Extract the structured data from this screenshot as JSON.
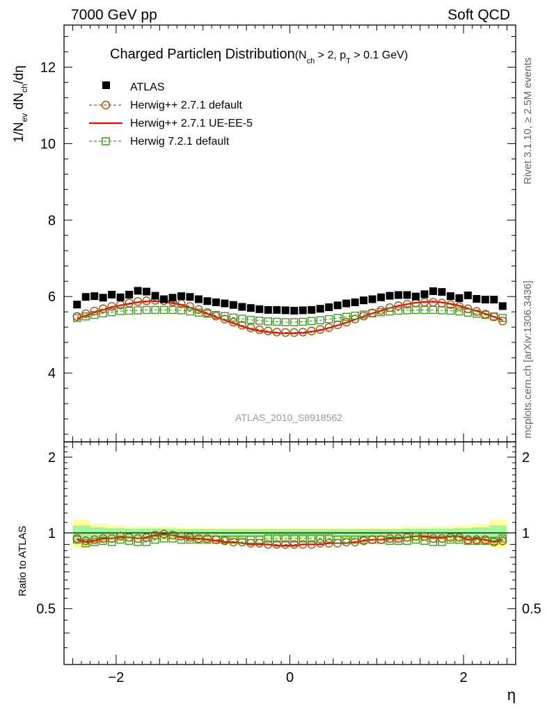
{
  "header": {
    "left": "7000 GeV pp",
    "right": "Soft QCD"
  },
  "side": {
    "top": "Rivet 3.1.10, ≥ 2.5M events",
    "bottom": "mcplots.cern.ch [arXiv:1306.3436]"
  },
  "watermark": "ATLAS_2010_S8918562",
  "colors": {
    "atlas": "#000000",
    "herwig_default": "#a0520f",
    "herwig_ueee5": "#ff0000",
    "herwig7": "#3d9a1e",
    "band_inner": "#9ff5a0",
    "band_outer": "#ffff99"
  },
  "chart_data": [
    {
      "type": "scatter",
      "title_main": "Charged Particle",
      "title_eta": "η",
      "title_rest": " Distribution",
      "title_cond": "(N",
      "title_cond_sub": "ch",
      "title_cond_mid": " > 2, p",
      "title_cond_sub2": "T",
      "title_cond_end": " > 0.1 GeV)",
      "ylabel": "1/N_ev dN_ch/dη",
      "xlim": [
        -2.6,
        2.6
      ],
      "ylim": [
        2.2,
        13.1
      ],
      "ytick_labels": [
        "4",
        "6",
        "8",
        "10",
        "12"
      ],
      "legend": [
        {
          "label": "ATLAS",
          "marker": "square-filled"
        },
        {
          "label": "Herwig++ 2.7.1 default",
          "marker": "circle-dashed"
        },
        {
          "label": "Herwig++ 2.7.1 UE-EE-5",
          "marker": "line"
        },
        {
          "label": "Herwig 7.2.1 default",
          "marker": "square-dashed"
        }
      ],
      "x": [
        -2.45,
        -2.35,
        -2.25,
        -2.15,
        -2.05,
        -1.95,
        -1.85,
        -1.75,
        -1.65,
        -1.55,
        -1.45,
        -1.35,
        -1.25,
        -1.15,
        -1.05,
        -0.95,
        -0.85,
        -0.75,
        -0.65,
        -0.55,
        -0.45,
        -0.35,
        -0.25,
        -0.15,
        -0.05,
        0.05,
        0.15,
        0.25,
        0.35,
        0.45,
        0.55,
        0.65,
        0.75,
        0.85,
        0.95,
        1.05,
        1.15,
        1.25,
        1.35,
        1.45,
        1.55,
        1.65,
        1.75,
        1.85,
        1.95,
        2.05,
        2.15,
        2.25,
        2.35,
        2.45
      ],
      "series": [
        {
          "name": "ATLAS",
          "values": [
            5.79,
            5.99,
            6.01,
            5.97,
            6.05,
            5.98,
            6.05,
            6.15,
            6.13,
            6.02,
            5.93,
            5.97,
            6.01,
            5.99,
            5.93,
            5.88,
            5.85,
            5.82,
            5.78,
            5.73,
            5.7,
            5.67,
            5.65,
            5.65,
            5.64,
            5.63,
            5.64,
            5.65,
            5.68,
            5.72,
            5.77,
            5.82,
            5.85,
            5.9,
            5.93,
            5.98,
            6.02,
            6.04,
            6.04,
            6.0,
            6.06,
            6.14,
            6.12,
            6.01,
            5.96,
            6.03,
            5.94,
            5.92,
            5.92,
            5.75
          ]
        },
        {
          "name": "Herwig++ 2.7.1 default",
          "values": [
            5.48,
            5.55,
            5.62,
            5.68,
            5.74,
            5.78,
            5.83,
            5.87,
            5.89,
            5.9,
            5.89,
            5.86,
            5.81,
            5.74,
            5.66,
            5.58,
            5.49,
            5.41,
            5.33,
            5.25,
            5.18,
            5.13,
            5.1,
            5.07,
            5.06,
            5.06,
            5.07,
            5.1,
            5.14,
            5.19,
            5.26,
            5.33,
            5.41,
            5.49,
            5.57,
            5.64,
            5.71,
            5.76,
            5.8,
            5.83,
            5.85,
            5.85,
            5.83,
            5.79,
            5.74,
            5.68,
            5.61,
            5.54,
            5.47,
            5.36
          ]
        },
        {
          "name": "Herwig++ 2.7.1 UE-EE-5",
          "values": [
            5.42,
            5.5,
            5.58,
            5.65,
            5.72,
            5.77,
            5.81,
            5.85,
            5.87,
            5.88,
            5.86,
            5.83,
            5.78,
            5.71,
            5.63,
            5.55,
            5.46,
            5.38,
            5.3,
            5.22,
            5.15,
            5.1,
            5.07,
            5.05,
            5.04,
            5.04,
            5.05,
            5.08,
            5.12,
            5.18,
            5.25,
            5.32,
            5.4,
            5.48,
            5.56,
            5.63,
            5.7,
            5.76,
            5.8,
            5.84,
            5.86,
            5.87,
            5.85,
            5.81,
            5.76,
            5.69,
            5.62,
            5.55,
            5.47,
            5.38
          ]
        },
        {
          "name": "Herwig 7.2.1 default",
          "values": [
            5.44,
            5.48,
            5.52,
            5.56,
            5.59,
            5.62,
            5.63,
            5.64,
            5.65,
            5.65,
            5.65,
            5.65,
            5.64,
            5.61,
            5.58,
            5.55,
            5.52,
            5.49,
            5.45,
            5.42,
            5.39,
            5.37,
            5.35,
            5.34,
            5.33,
            5.33,
            5.34,
            5.36,
            5.38,
            5.41,
            5.44,
            5.47,
            5.5,
            5.53,
            5.56,
            5.59,
            5.61,
            5.63,
            5.64,
            5.65,
            5.65,
            5.65,
            5.64,
            5.63,
            5.61,
            5.58,
            5.55,
            5.52,
            5.48,
            5.44
          ]
        }
      ]
    },
    {
      "type": "scatter",
      "ylabel": "Ratio to ATLAS",
      "xlabel": "η",
      "xlim": [
        -2.6,
        2.6
      ],
      "ylim": [
        0.3,
        2.3
      ],
      "ytick_labels": [
        "0.5",
        "1",
        "2"
      ],
      "xtick_labels": [
        "−2",
        "0",
        "2"
      ],
      "x": [
        -2.45,
        -2.35,
        -2.25,
        -2.15,
        -2.05,
        -1.95,
        -1.85,
        -1.75,
        -1.65,
        -1.55,
        -1.45,
        -1.35,
        -1.25,
        -1.15,
        -1.05,
        -0.95,
        -0.85,
        -0.75,
        -0.65,
        -0.55,
        -0.45,
        -0.35,
        -0.25,
        -0.15,
        -0.05,
        0.05,
        0.15,
        0.25,
        0.35,
        0.45,
        0.55,
        0.65,
        0.75,
        0.85,
        0.95,
        1.05,
        1.15,
        1.25,
        1.35,
        1.45,
        1.55,
        1.65,
        1.75,
        1.85,
        1.95,
        2.05,
        2.15,
        2.25,
        2.35,
        2.45
      ],
      "band_outer": {
        "edges": [
          -2.5,
          -2.3,
          -2.1,
          -1.9,
          -1.3,
          0.0,
          1.3,
          1.9,
          2.1,
          2.3,
          2.5
        ],
        "half_width": [
          0.13,
          0.085,
          0.07,
          0.06,
          0.05,
          0.05,
          0.06,
          0.07,
          0.085,
          0.13
        ]
      },
      "band_inner": {
        "edges": [
          -2.5,
          -2.3,
          -2.1,
          -1.9,
          -1.3,
          0.0,
          1.3,
          1.9,
          2.1,
          2.3,
          2.5
        ],
        "half_width": [
          0.07,
          0.05,
          0.045,
          0.04,
          0.035,
          0.035,
          0.04,
          0.045,
          0.05,
          0.07
        ]
      },
      "series": [
        {
          "name": "Herwig++ 2.7.1 default",
          "values": [
            0.95,
            0.93,
            0.94,
            0.95,
            0.95,
            0.97,
            0.96,
            0.95,
            0.96,
            0.98,
            0.99,
            0.98,
            0.97,
            0.96,
            0.95,
            0.95,
            0.94,
            0.93,
            0.92,
            0.92,
            0.91,
            0.91,
            0.9,
            0.9,
            0.9,
            0.9,
            0.9,
            0.9,
            0.91,
            0.91,
            0.91,
            0.92,
            0.92,
            0.93,
            0.94,
            0.94,
            0.95,
            0.95,
            0.96,
            0.97,
            0.97,
            0.95,
            0.95,
            0.96,
            0.96,
            0.94,
            0.94,
            0.94,
            0.92,
            0.93
          ]
        },
        {
          "name": "Herwig++ 2.7.1 UE-EE-5",
          "values": [
            0.94,
            0.92,
            0.93,
            0.95,
            0.95,
            0.96,
            0.96,
            0.95,
            0.96,
            0.98,
            0.99,
            0.98,
            0.96,
            0.95,
            0.95,
            0.94,
            0.93,
            0.92,
            0.92,
            0.91,
            0.9,
            0.9,
            0.9,
            0.89,
            0.89,
            0.89,
            0.9,
            0.9,
            0.9,
            0.91,
            0.91,
            0.91,
            0.92,
            0.93,
            0.94,
            0.94,
            0.95,
            0.95,
            0.96,
            0.97,
            0.97,
            0.96,
            0.96,
            0.97,
            0.97,
            0.94,
            0.95,
            0.94,
            0.92,
            0.94
          ]
        },
        {
          "name": "Herwig 7.2.1 default",
          "values": [
            0.94,
            0.91,
            0.92,
            0.93,
            0.92,
            0.94,
            0.93,
            0.92,
            0.92,
            0.94,
            0.95,
            0.95,
            0.94,
            0.94,
            0.94,
            0.94,
            0.94,
            0.94,
            0.94,
            0.94,
            0.94,
            0.94,
            0.95,
            0.95,
            0.95,
            0.95,
            0.95,
            0.95,
            0.95,
            0.95,
            0.94,
            0.94,
            0.94,
            0.94,
            0.94,
            0.94,
            0.93,
            0.93,
            0.93,
            0.94,
            0.93,
            0.92,
            0.92,
            0.94,
            0.94,
            0.93,
            0.93,
            0.93,
            0.93,
            0.95
          ]
        }
      ]
    }
  ]
}
